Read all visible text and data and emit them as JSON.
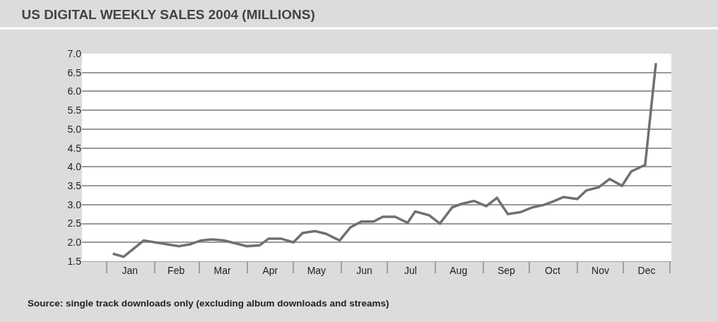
{
  "chart_data": {
    "type": "line",
    "title": "US DIGITAL WEEKLY SALES 2004 (MILLIONS)",
    "x": [
      "2004-01-05",
      "2004-01-12",
      "2004-01-25",
      "2004-02-17",
      "2004-02-24",
      "2004-03-02",
      "2004-03-09",
      "2004-03-17",
      "2004-04-01",
      "2004-04-09",
      "2004-04-15",
      "2004-04-23",
      "2004-05-01",
      "2004-05-07",
      "2004-05-15",
      "2004-05-22",
      "2004-05-31",
      "2004-06-07",
      "2004-06-14",
      "2004-06-22",
      "2004-06-28",
      "2004-07-06",
      "2004-07-14",
      "2004-07-19",
      "2004-07-28",
      "2004-08-04",
      "2004-08-12",
      "2004-08-18",
      "2004-08-26",
      "2004-09-03",
      "2004-09-10",
      "2004-09-17",
      "2004-09-25",
      "2004-10-03",
      "2004-10-10",
      "2004-10-16",
      "2004-10-23",
      "2004-11-01",
      "2004-11-07",
      "2004-11-15",
      "2004-11-22",
      "2004-11-30",
      "2004-12-06",
      "2004-12-15",
      "2004-12-22"
    ],
    "series": [
      {
        "color": "#707070",
        "values": [
          1.7,
          1.62,
          2.05,
          1.9,
          1.95,
          2.05,
          2.08,
          2.05,
          1.9,
          1.92,
          2.1,
          2.1,
          2.0,
          2.25,
          2.3,
          2.23,
          2.05,
          2.4,
          2.55,
          2.55,
          2.68,
          2.68,
          2.52,
          2.82,
          2.72,
          2.5,
          2.93,
          3.02,
          3.1,
          2.96,
          3.18,
          2.75,
          2.8,
          2.93,
          2.99,
          3.08,
          3.2,
          3.15,
          3.38,
          3.46,
          3.68,
          3.5,
          3.88,
          4.05,
          6.75
        ]
      }
    ],
    "xlim": [
      "2003-12-16",
      "2005-01-01"
    ],
    "xticks": [
      {
        "value": "2004-01-01",
        "label": null
      },
      {
        "value": "2004-01-16",
        "label": "Jan"
      },
      {
        "value": "2004-02-01",
        "label": null
      },
      {
        "value": "2004-02-15",
        "label": "Feb"
      },
      {
        "value": "2004-03-01",
        "label": null
      },
      {
        "value": "2004-03-16",
        "label": "Mar"
      },
      {
        "value": "2004-04-01",
        "label": null
      },
      {
        "value": "2004-04-16",
        "label": "Apr"
      },
      {
        "value": "2004-05-01",
        "label": null
      },
      {
        "value": "2004-05-16",
        "label": "May"
      },
      {
        "value": "2004-06-01",
        "label": null
      },
      {
        "value": "2004-06-16",
        "label": "Jun"
      },
      {
        "value": "2004-07-01",
        "label": null
      },
      {
        "value": "2004-07-16",
        "label": "Jul"
      },
      {
        "value": "2004-08-01",
        "label": null
      },
      {
        "value": "2004-08-16",
        "label": "Aug"
      },
      {
        "value": "2004-09-01",
        "label": null
      },
      {
        "value": "2004-09-16",
        "label": "Sep"
      },
      {
        "value": "2004-10-01",
        "label": null
      },
      {
        "value": "2004-10-16",
        "label": "Oct"
      },
      {
        "value": "2004-11-01",
        "label": null
      },
      {
        "value": "2004-11-16",
        "label": "Nov"
      },
      {
        "value": "2004-12-01",
        "label": null
      },
      {
        "value": "2004-12-16",
        "label": "Dec"
      },
      {
        "value": "2004-12-31",
        "label": null
      }
    ],
    "ylim": [
      1.5,
      7.0
    ],
    "yticks": [
      {
        "value": 1.5,
        "label": "1.5"
      },
      {
        "value": 2,
        "label": "2.0"
      },
      {
        "value": 2.5,
        "label": "2.5"
      },
      {
        "value": 3,
        "label": "3.0"
      },
      {
        "value": 3.5,
        "label": "3.5"
      },
      {
        "value": 4,
        "label": "4.0"
      },
      {
        "value": 4.5,
        "label": "4.5"
      },
      {
        "value": 5,
        "label": "5.0"
      },
      {
        "value": 5.5,
        "label": "5.5"
      },
      {
        "value": 6,
        "label": "6.0"
      },
      {
        "value": 6.5,
        "label": "6.5"
      },
      {
        "value": 7,
        "label": "7.0"
      }
    ],
    "grid": "y",
    "line_style": "solid",
    "annotations": [
      "Source: single track downloads only (excluding album downloads and streams)"
    ]
  }
}
